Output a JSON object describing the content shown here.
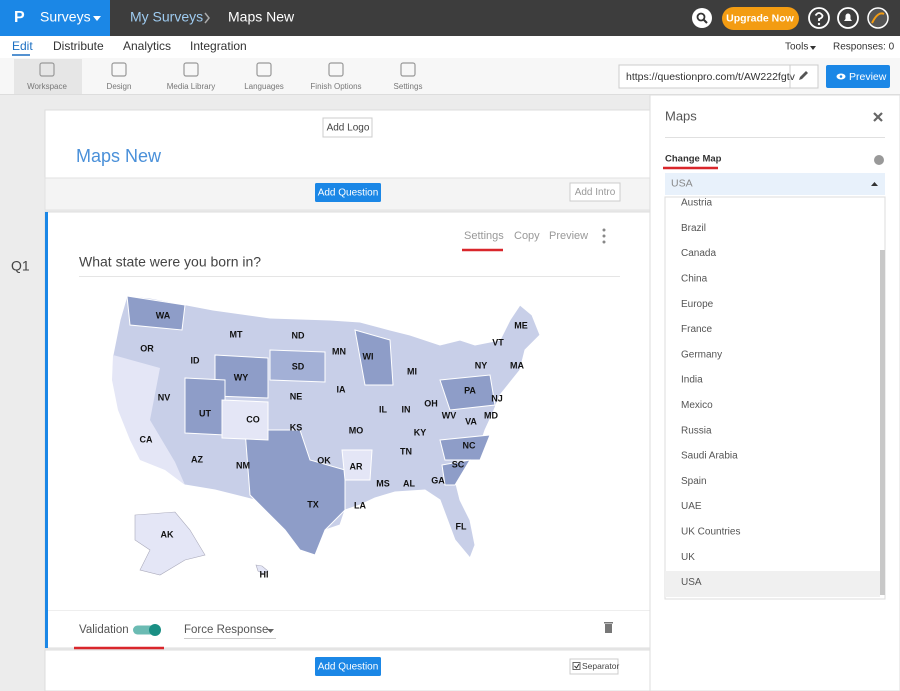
{
  "top_bar": {
    "logo": "P",
    "brand": "Surveys",
    "breadcrumb": [
      "My Surveys",
      "Maps New"
    ],
    "upgrade": "Upgrade Now"
  },
  "nav": {
    "tabs": [
      "Edit",
      "Distribute",
      "Analytics",
      "Integration"
    ],
    "tools": "Tools",
    "responses": "Responses: 0"
  },
  "toolbar": {
    "items": [
      "Workspace",
      "Design",
      "Media Library",
      "Languages",
      "Finish Options",
      "Settings"
    ],
    "url": "https://questionpro.com/t/AW222fgtv",
    "preview": "Preview"
  },
  "survey": {
    "add_logo": "Add Logo",
    "title": "Maps New",
    "add_question": "Add Question",
    "add_intro": "Add Intro",
    "separator": "Separator"
  },
  "question": {
    "number": "Q1",
    "actions": [
      "Settings",
      "Copy",
      "Preview"
    ],
    "text": "What state were you born in?",
    "states": [
      "WA",
      "OR",
      "MT",
      "ID",
      "WY",
      "ND",
      "SD",
      "MN",
      "WI",
      "MI",
      "NV",
      "UT",
      "CO",
      "NE",
      "IA",
      "IL",
      "IN",
      "OH",
      "PA",
      "NY",
      "VT",
      "ME",
      "MA",
      "NJ",
      "MD",
      "VA",
      "WV",
      "KY",
      "MO",
      "KS",
      "CA",
      "AZ",
      "NM",
      "OK",
      "AR",
      "TN",
      "NC",
      "SC",
      "MS",
      "AL",
      "GA",
      "LA",
      "TX",
      "FL",
      "AK",
      "HI"
    ],
    "validation": "Validation",
    "force_response": "Force Response"
  },
  "panel": {
    "title": "Maps",
    "label": "Change Map",
    "selected": "USA",
    "options": [
      "Austria",
      "Brazil",
      "Canada",
      "China",
      "Europe",
      "France",
      "Germany",
      "India",
      "Mexico",
      "Russia",
      "Saudi Arabia",
      "Spain",
      "UAE",
      "UK Countries",
      "UK",
      "USA"
    ]
  }
}
